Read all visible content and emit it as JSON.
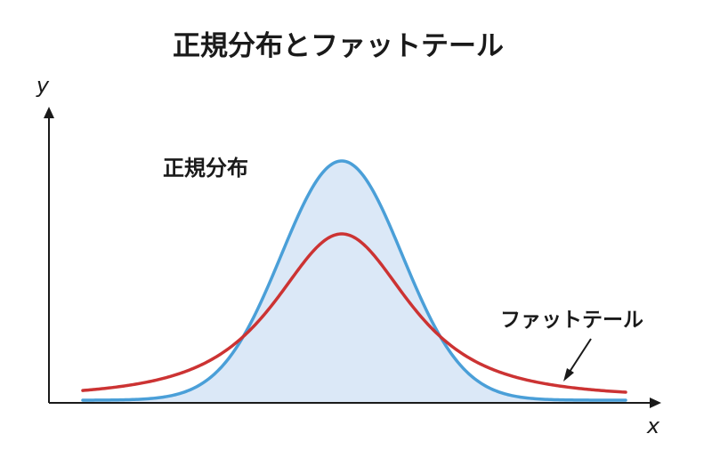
{
  "title": "正規分布とファットテール",
  "labels": {
    "normal": "正規分布",
    "fat_tail": "ファットテール"
  },
  "axes": {
    "x_label": "x",
    "y_label": "y"
  },
  "colors": {
    "normal_curve": "#4a9fd8",
    "normal_fill": "#dbe8f7",
    "fat_tail_curve": "#cc3333",
    "axis": "#1a1a1a",
    "text": "#1a1a1a"
  }
}
